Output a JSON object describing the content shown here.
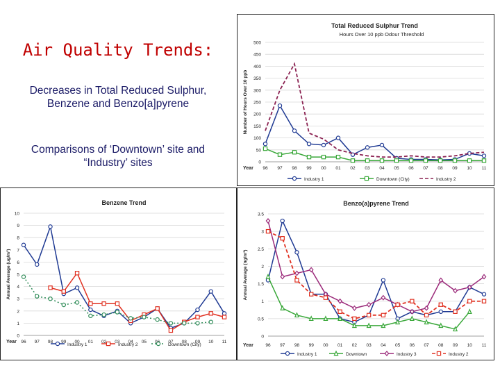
{
  "slide": {
    "title": "Air Quality Trends:",
    "subtitle": "Decreases in Total Reduced Sulphur, Benzene and Benzo[a]pyrene",
    "note": "Comparisons of ‘Downtown’ site and “Industry’ sites"
  },
  "chart_data": [
    {
      "id": "trs",
      "type": "line",
      "title": "Total Reduced Sulphur Trend",
      "subtitle": "Hours Over 10 ppb Odour Threshold",
      "xlabel": "Year",
      "ylabel": "Number of Hours Over 10 ppb",
      "categories": [
        "96",
        "97",
        "98",
        "99",
        "00",
        "01",
        "02",
        "03",
        "04",
        "05",
        "06",
        "07",
        "08",
        "09",
        "10",
        "11"
      ],
      "ylim": [
        0,
        500
      ],
      "yticks": [
        0,
        50,
        100,
        150,
        200,
        250,
        300,
        350,
        400,
        450,
        500
      ],
      "grid": true,
      "legend": "bottom",
      "series": [
        {
          "name": "Industry 1",
          "color": "#1f3a93",
          "dash": "solid",
          "marker": "circle",
          "values": [
            75,
            235,
            130,
            75,
            70,
            100,
            30,
            60,
            70,
            15,
            10,
            10,
            8,
            10,
            35,
            25
          ]
        },
        {
          "name": "Downtown (City)",
          "color": "#3aa83a",
          "dash": "solid",
          "marker": "square",
          "values": [
            55,
            30,
            40,
            20,
            20,
            20,
            5,
            5,
            5,
            5,
            5,
            5,
            5,
            5,
            5,
            5
          ]
        },
        {
          "name": "Industry 2",
          "color": "#8b2252",
          "dash": "dashed",
          "marker": "none",
          "values": [
            130,
            300,
            410,
            120,
            95,
            50,
            35,
            25,
            20,
            20,
            25,
            20,
            20,
            25,
            35,
            40
          ]
        }
      ]
    },
    {
      "id": "benzene",
      "type": "line",
      "title": "Benzene Trend",
      "xlabel": "Year",
      "ylabel": "Annual Average (ug/m³)",
      "categories": [
        "96",
        "97",
        "98",
        "99",
        "00",
        "01",
        "02",
        "03",
        "04",
        "05",
        "06",
        "07",
        "08",
        "09",
        "10",
        "11"
      ],
      "ylim": [
        0,
        10
      ],
      "yticks": [
        0,
        1,
        2,
        3,
        4,
        5,
        6,
        7,
        8,
        9,
        10
      ],
      "grid": true,
      "legend": "bottom",
      "series": [
        {
          "name": "Industry 1",
          "color": "#1f3a93",
          "dash": "solid",
          "marker": "circle",
          "values": [
            7.4,
            5.8,
            8.9,
            3.4,
            3.9,
            2.1,
            1.6,
            2.0,
            1.0,
            1.5,
            2.2,
            0.6,
            1.0,
            2.1,
            3.6,
            1.8
          ]
        },
        {
          "name": "Industry 2",
          "color": "#e03020",
          "dash": "solid",
          "marker": "square",
          "values": [
            null,
            null,
            3.9,
            3.6,
            5.1,
            2.6,
            2.6,
            2.6,
            1.2,
            1.7,
            2.2,
            0.4,
            1.1,
            1.5,
            1.8,
            1.5
          ]
        },
        {
          "name": "Downtown (City)",
          "color": "#2e8b57",
          "dash": "dotted",
          "marker": "circle",
          "values": [
            4.8,
            3.2,
            3.0,
            2.5,
            2.7,
            1.6,
            1.7,
            1.9,
            1.4,
            1.5,
            1.3,
            1.0,
            1.0,
            1.0,
            1.1,
            null
          ]
        }
      ]
    },
    {
      "id": "bap",
      "type": "line",
      "title": "Benzo(a)pyrene Trend",
      "xlabel": "Year",
      "ylabel": "Annual Average (ng/m³)",
      "categories": [
        "96",
        "97",
        "98",
        "99",
        "00",
        "01",
        "02",
        "03",
        "04",
        "05",
        "06",
        "07",
        "08",
        "09",
        "10",
        "11"
      ],
      "ylim": [
        0,
        3.5
      ],
      "yticks": [
        0,
        0.5,
        1.0,
        1.5,
        2.0,
        2.5,
        3.0,
        3.5
      ],
      "grid": true,
      "legend": "bottom",
      "series": [
        {
          "name": "Industry 1",
          "color": "#1f3a93",
          "dash": "solid",
          "marker": "circle",
          "values": [
            1.6,
            3.3,
            2.4,
            1.2,
            1.2,
            0.5,
            0.4,
            0.6,
            1.6,
            0.5,
            0.7,
            0.6,
            0.7,
            0.7,
            1.4,
            1.2
          ]
        },
        {
          "name": "Downtown",
          "color": "#3aa83a",
          "dash": "solid",
          "marker": "triangle",
          "values": [
            1.7,
            0.8,
            0.6,
            0.5,
            0.5,
            0.5,
            0.3,
            0.3,
            0.3,
            0.4,
            0.5,
            0.4,
            0.3,
            0.2,
            0.7,
            null
          ]
        },
        {
          "name": "Industry 3",
          "color": "#9b2a7a",
          "dash": "solid",
          "marker": "diamond",
          "values": [
            3.3,
            1.7,
            1.8,
            1.9,
            1.2,
            1.0,
            0.8,
            0.9,
            1.1,
            0.9,
            0.7,
            0.8,
            1.6,
            1.3,
            1.4,
            1.7
          ]
        },
        {
          "name": "Industry 2",
          "color": "#e03020",
          "dash": "dashed",
          "marker": "square",
          "values": [
            3.0,
            2.8,
            1.6,
            1.2,
            1.1,
            0.7,
            0.5,
            0.6,
            0.6,
            0.9,
            1.0,
            0.6,
            0.9,
            0.7,
            1.0,
            1.0
          ]
        }
      ]
    }
  ]
}
